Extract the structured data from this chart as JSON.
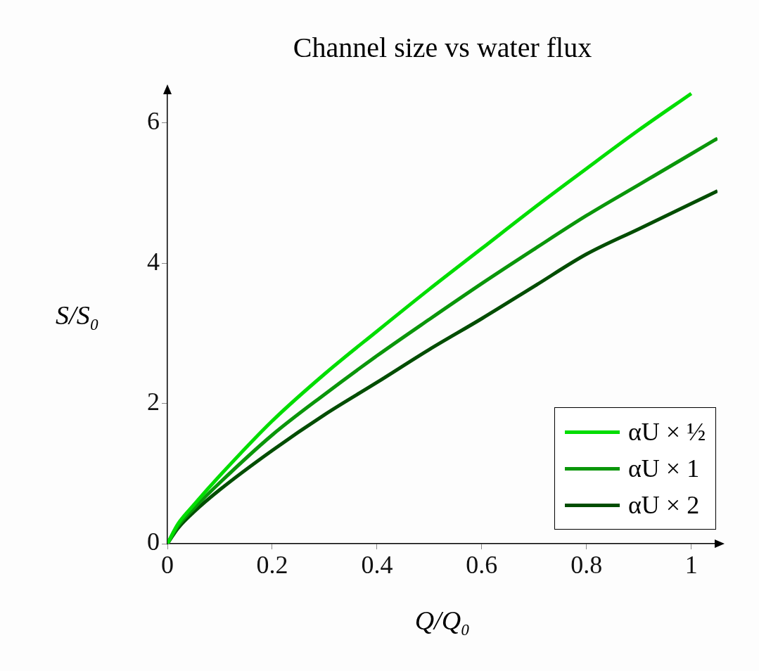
{
  "chart_data": {
    "type": "line",
    "title": "Channel size vs water flux",
    "xlabel": "Q/Q₀",
    "ylabel": "S/S₀",
    "xlim": [
      0,
      1.05
    ],
    "ylim": [
      0,
      6.45
    ],
    "xticks": [
      0,
      0.2,
      0.4,
      0.6,
      0.8,
      1
    ],
    "yticks": [
      0,
      2,
      4,
      6
    ],
    "grid": false,
    "legend": "bottom right",
    "marker": "none",
    "line_style": "solid",
    "series": [
      {
        "name": "αU × ½",
        "color": "#00dd00",
        "x": [
          0,
          0.02,
          0.05,
          0.1,
          0.2,
          0.3,
          0.4,
          0.5,
          0.6,
          0.7,
          0.8,
          0.9,
          1.0
        ],
        "values": [
          0,
          0.28,
          0.55,
          0.97,
          1.75,
          2.42,
          3.03,
          3.63,
          4.21,
          4.79,
          5.35,
          5.9,
          6.42
        ]
      },
      {
        "name": "αU × 1",
        "color": "#0a960a",
        "x": [
          0,
          0.02,
          0.05,
          0.1,
          0.2,
          0.3,
          0.4,
          0.5,
          0.6,
          0.7,
          0.8,
          0.9,
          1.0,
          1.05
        ],
        "values": [
          0,
          0.25,
          0.5,
          0.87,
          1.55,
          2.13,
          2.68,
          3.2,
          3.71,
          4.2,
          4.68,
          5.12,
          5.56,
          5.78
        ]
      },
      {
        "name": "αU × 2",
        "color": "#014d01",
        "x": [
          0,
          0.02,
          0.05,
          0.1,
          0.2,
          0.3,
          0.4,
          0.5,
          0.6,
          0.7,
          0.8,
          0.9,
          1.0,
          1.05
        ],
        "values": [
          0,
          0.22,
          0.45,
          0.77,
          1.33,
          1.84,
          2.3,
          2.77,
          3.21,
          3.67,
          4.13,
          4.49,
          4.85,
          5.03
        ]
      }
    ]
  }
}
